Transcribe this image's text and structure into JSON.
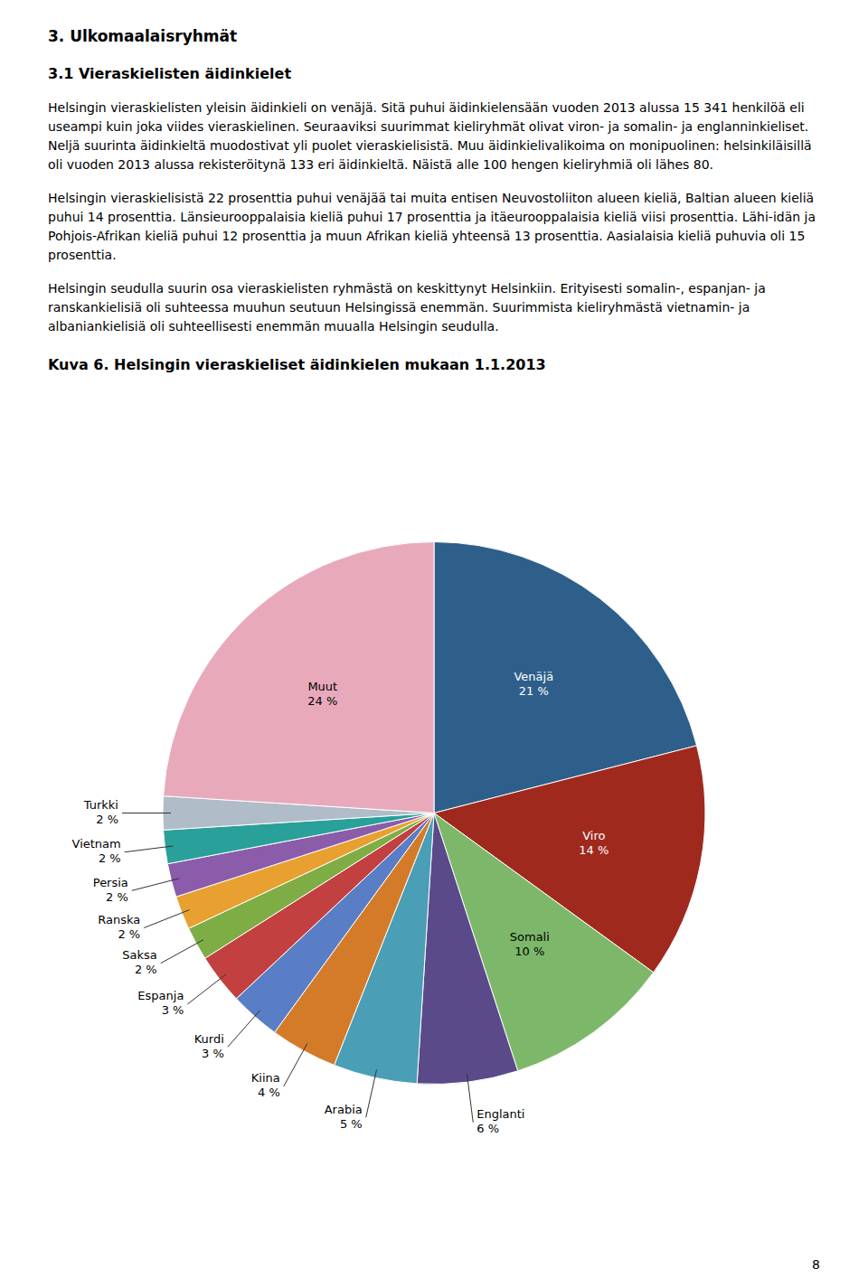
{
  "page_text": {
    "heading": "3. Ulkomaalaisryhmät",
    "subheading": "3.1 Vieraskielisten äidinkielet",
    "paragraphs": [
      "Helsingin vieraskielisten yleisin äidinkieli on venäjä. Sitä puhui äidinkielensään vuoden 2013 alussa 15 341 henkilöä eli useampi kuin joka viides vieraskielinen. Seuraaviksi suurimmat kieliryhmät olivat viron- ja somalin- ja englanninkieliset. Neljä suurinta äidinkieltä muodostivat yli puolet vieraskielisistä. Muu äidinkielivalikoima on monipuolinen: helsinkiläisillä oli vuoden 2013 alussa rekisteröitynä 133 eri äidinkieltä. Näistä alle 100 hengen kieliryhmiä oli lähes 80.",
      "Helsingin vieraskielisistä 22 prosenttia puhui venäjää tai muita entisen Neuvostoliiton alueen kieliä, Baltian alueen kieliä puhui 14 prosenttia. Länsieurooppalaisia kieliä puhui 17 prosenttia ja itäeurooppalaisia kieliä viisi prosenttia. Lähi-idän ja Pohjois-Afrikan kieliä puhui 12 prosenttia ja muun Afrikan kieliä yhteensä 13 prosenttia. Aasialaisia kieliä puhuvia oli 15 prosenttia.",
      "Helsingin seudulla suurin osa vieraskielisten ryhmästä on keskittynyt Helsinkiin. Erityisesti somalin-, espanjan- ja ranskankielisiä oli suhteessa muuhun seutuun Helsingissä enemmän. Suurimmista kieliryhmästä vietnamin- ja albaniankielisiä oli suhteellisesti enemmän muualla Helsingin seudulla."
    ],
    "page_number": "8"
  },
  "chart_data": {
    "type": "pie",
    "title": "Kuva 6. Helsingin vieraskieliset äidinkielen mukaan 1.1.2013",
    "categories": [
      "Venäjä",
      "Viro",
      "Somali",
      "Englanti",
      "Arabia",
      "Kiina",
      "Kurdi",
      "Espanja",
      "Saksa",
      "Ranska",
      "Persia",
      "Vietnam",
      "Turkki",
      "Muut"
    ],
    "values": [
      21,
      14,
      10,
      6,
      5,
      4,
      3,
      3,
      2,
      2,
      2,
      2,
      2,
      24
    ],
    "value_labels": [
      "21 %",
      "14 %",
      "10 %",
      "6 %",
      "5 %",
      "4 %",
      "3 %",
      "3 %",
      "2 %",
      "2 %",
      "2 %",
      "2 %",
      "2 %",
      "24 %"
    ],
    "colors": [
      "#2E5F8A",
      "#A0291E",
      "#7DB86A",
      "#5B4A8A",
      "#4A9EB5",
      "#D47B2A",
      "#5A7EC5",
      "#C24040",
      "#7FAD45",
      "#E8A030",
      "#8B5CAA",
      "#29A09A",
      "#B0BCC8",
      "#E8AABB"
    ],
    "data_labels": true
  }
}
